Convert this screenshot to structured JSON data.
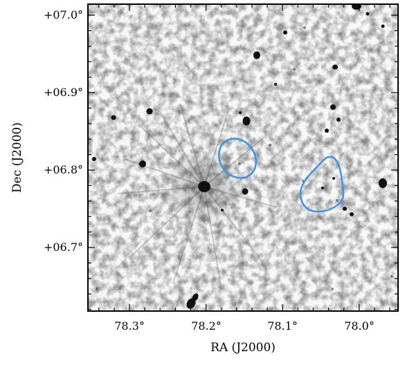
{
  "figure": {
    "x_axis_label": "RA (J2000)",
    "y_axis_label": "Dec (J2000)",
    "x_ticks": [
      "78.3°",
      "78.2°",
      "78.1°",
      "78.0°"
    ],
    "y_ticks": [
      "+07.0°",
      "+06.9°",
      "+06.8°",
      "+06.7°"
    ],
    "contour_color": "#3a94e6",
    "colormap": "inverted grayscale"
  }
}
